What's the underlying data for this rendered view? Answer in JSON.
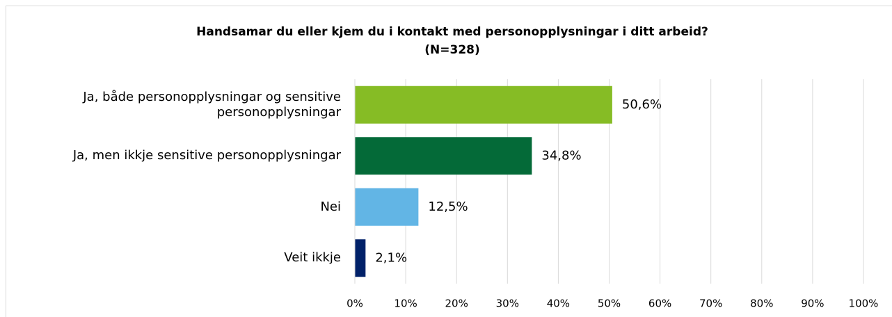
{
  "chart_data": {
    "type": "bar",
    "orientation": "horizontal",
    "title": "Handsamar du eller kjem du i kontakt med personopplysningar i ditt arbeid?",
    "subtitle": "(N=328)",
    "categories": [
      "Ja, både personopplysningar og sensitive personopplysningar",
      "Ja, men ikkje sensitive personopplysningar",
      "Nei",
      "Veit ikkje"
    ],
    "values": [
      50.6,
      34.8,
      12.5,
      2.1
    ],
    "value_labels": [
      "50,6%",
      "34,8%",
      "12,5%",
      "2,1%"
    ],
    "colors": [
      "#86bc25",
      "#046a38",
      "#62b5e5",
      "#012169"
    ],
    "xlim": [
      0,
      100
    ],
    "xticks": [
      {
        "value": 0,
        "label": "0%"
      },
      {
        "value": 10,
        "label": "10%"
      },
      {
        "value": 20,
        "label": "20%"
      },
      {
        "value": 30,
        "label": "30%"
      },
      {
        "value": 40,
        "label": "40%"
      },
      {
        "value": 50,
        "label": "50%"
      },
      {
        "value": 60,
        "label": "60%"
      },
      {
        "value": 70,
        "label": "70%"
      },
      {
        "value": 80,
        "label": "80%"
      },
      {
        "value": 90,
        "label": "90%"
      },
      {
        "value": 100,
        "label": "100%"
      }
    ],
    "grid": true
  }
}
